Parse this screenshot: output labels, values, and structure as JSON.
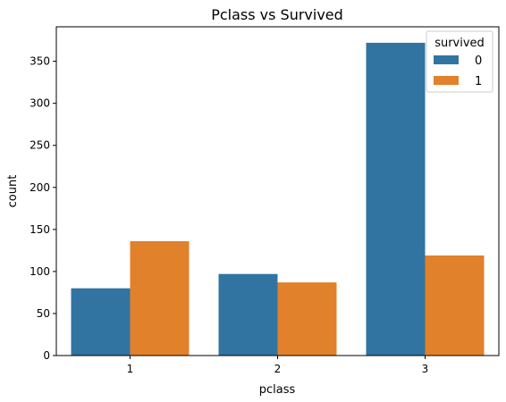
{
  "chart_data": {
    "type": "bar",
    "title": "Pclass vs Survived",
    "xlabel": "pclass",
    "ylabel": "count",
    "categories": [
      "1",
      "2",
      "3"
    ],
    "series": [
      {
        "name": "0",
        "values": [
          80,
          97,
          372
        ],
        "color": "#3274a1"
      },
      {
        "name": "1",
        "values": [
          136,
          87,
          119
        ],
        "color": "#e1812c"
      }
    ],
    "ylim": [
      0,
      391
    ],
    "yticks": [
      0,
      50,
      100,
      150,
      200,
      250,
      300,
      350
    ],
    "legend": {
      "title": "survived",
      "placement": "top-right"
    },
    "grid": false
  }
}
